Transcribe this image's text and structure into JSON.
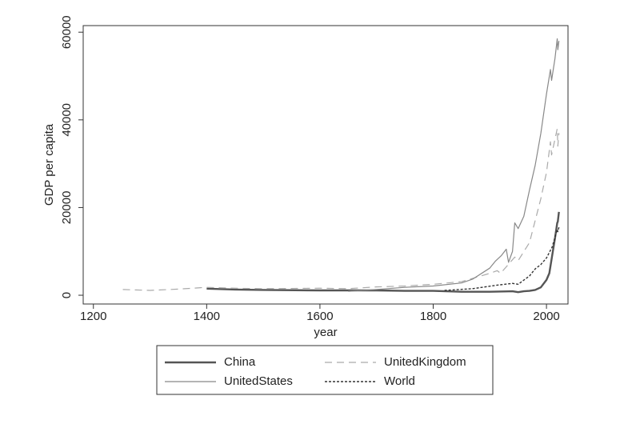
{
  "chart_data": {
    "type": "line",
    "xlabel": "year",
    "ylabel": "GDP per capita",
    "xlim": [
      1182,
      2038
    ],
    "xticks": [
      1200,
      1400,
      1600,
      1800,
      2000
    ],
    "ylim": [
      -2000,
      61500
    ],
    "yticks": [
      0,
      20000,
      40000,
      60000
    ],
    "series": [
      {
        "name": "China",
        "color": "#555555",
        "style": "solid",
        "width": 2.4,
        "x": [
          1400,
          1450,
          1500,
          1600,
          1700,
          1750,
          1800,
          1850,
          1900,
          1940,
          1950,
          1960,
          1970,
          1980,
          1990,
          2000,
          2005,
          2010,
          2015,
          2019,
          2020,
          2022
        ],
        "values": [
          1500,
          1300,
          1200,
          1100,
          1100,
          1000,
          1000,
          800,
          800,
          900,
          700,
          900,
          1000,
          1200,
          1800,
          3500,
          5000,
          9000,
          13000,
          16500,
          16800,
          19000
        ]
      },
      {
        "name": "UnitedKingdom",
        "color": "#aaaaaa",
        "style": "dashed",
        "width": 1.2,
        "x": [
          1252,
          1300,
          1350,
          1400,
          1450,
          1500,
          1600,
          1650,
          1700,
          1750,
          1800,
          1850,
          1900,
          1913,
          1919,
          1944,
          1950,
          1970,
          1980,
          1990,
          2000,
          2007,
          2009,
          2019,
          2020,
          2022
        ],
        "values": [
          1300,
          1100,
          1400,
          1800,
          1600,
          1500,
          1600,
          1500,
          1900,
          2100,
          2500,
          3100,
          5000,
          5600,
          5000,
          8700,
          7900,
          12000,
          17000,
          22000,
          28000,
          35000,
          32000,
          38000,
          34000,
          37000
        ]
      },
      {
        "name": "UnitedStates",
        "color": "#888888",
        "style": "solid",
        "width": 1.2,
        "x": [
          1650,
          1700,
          1750,
          1800,
          1850,
          1870,
          1900,
          1910,
          1920,
          1929,
          1933,
          1940,
          1944,
          1950,
          1960,
          1970,
          1980,
          1990,
          2000,
          2007,
          2009,
          2015,
          2019,
          2020,
          2022
        ],
        "values": [
          900,
          1300,
          1800,
          2100,
          2800,
          3700,
          6200,
          7800,
          9000,
          10500,
          7500,
          10000,
          16500,
          15200,
          18000,
          24000,
          29600,
          36900,
          45900,
          51500,
          49000,
          54000,
          58500,
          56000,
          58000
        ]
      },
      {
        "name": "World",
        "color": "#333333",
        "style": "dotted",
        "width": 1.4,
        "x": [
          1820,
          1870,
          1913,
          1940,
          1950,
          1970,
          1980,
          1990,
          2000,
          2010,
          2019,
          2020,
          2022
        ],
        "values": [
          1100,
          1500,
          2300,
          2700,
          2500,
          4400,
          6000,
          7000,
          8500,
          11000,
          15000,
          14500,
          15500
        ]
      }
    ]
  }
}
